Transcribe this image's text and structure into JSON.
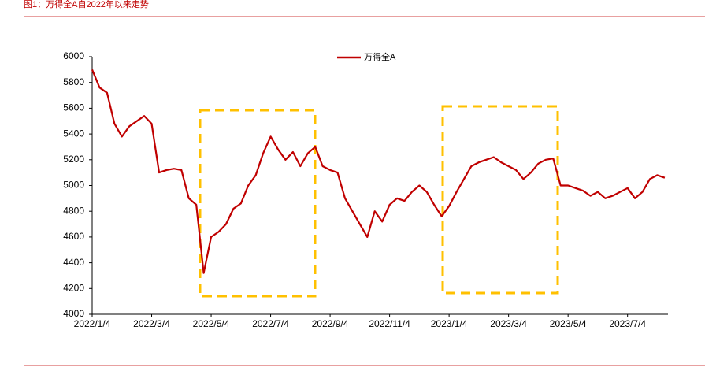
{
  "chart_data": {
    "type": "line",
    "title": "图1：万得全A自2022年以来走势",
    "categories": [
      "2022/1/4",
      null,
      null,
      null,
      null,
      null,
      null,
      null,
      "2022/3/4",
      null,
      null,
      null,
      null,
      null,
      null,
      null,
      "2022/5/4",
      null,
      null,
      null,
      null,
      null,
      null,
      null,
      "2022/7/4",
      null,
      null,
      null,
      null,
      null,
      null,
      null,
      "2022/9/4",
      null,
      null,
      null,
      null,
      null,
      null,
      null,
      "2022/11/4",
      null,
      null,
      null,
      null,
      null,
      null,
      null,
      "2023/1/4",
      null,
      null,
      null,
      null,
      null,
      null,
      null,
      "2023/3/4",
      null,
      null,
      null,
      null,
      null,
      null,
      null,
      "2023/5/4",
      null,
      null,
      null,
      null,
      null,
      null,
      null,
      "2023/7/4",
      null,
      null,
      null,
      null,
      null
    ],
    "series": [
      {
        "name": "万得全A",
        "color": "#c00000",
        "values": [
          5900,
          5760,
          5720,
          5480,
          5380,
          5460,
          5500,
          5540,
          5480,
          5100,
          5120,
          5130,
          5120,
          4900,
          4850,
          4320,
          4600,
          4640,
          4700,
          4820,
          4860,
          5000,
          5080,
          5250,
          5380,
          5280,
          5200,
          5260,
          5150,
          5250,
          5300,
          5150,
          5120,
          5100,
          4900,
          4800,
          4700,
          4600,
          4800,
          4720,
          4850,
          4900,
          4880,
          4950,
          5000,
          4950,
          4850,
          4760,
          4840,
          4950,
          5050,
          5150,
          5180,
          5200,
          5220,
          5180,
          5150,
          5120,
          5050,
          5100,
          5170,
          5200,
          5210,
          5000,
          5000,
          4980,
          4960,
          4920,
          4950,
          4900,
          4920,
          4950,
          4980,
          4900,
          4950,
          5050,
          5080,
          5060
        ]
      }
    ],
    "ylim": [
      4000,
      6000
    ],
    "yticks": [
      4000,
      4200,
      4400,
      4600,
      4800,
      5000,
      5200,
      5400,
      5600,
      5800,
      6000
    ],
    "grid": false
  }
}
